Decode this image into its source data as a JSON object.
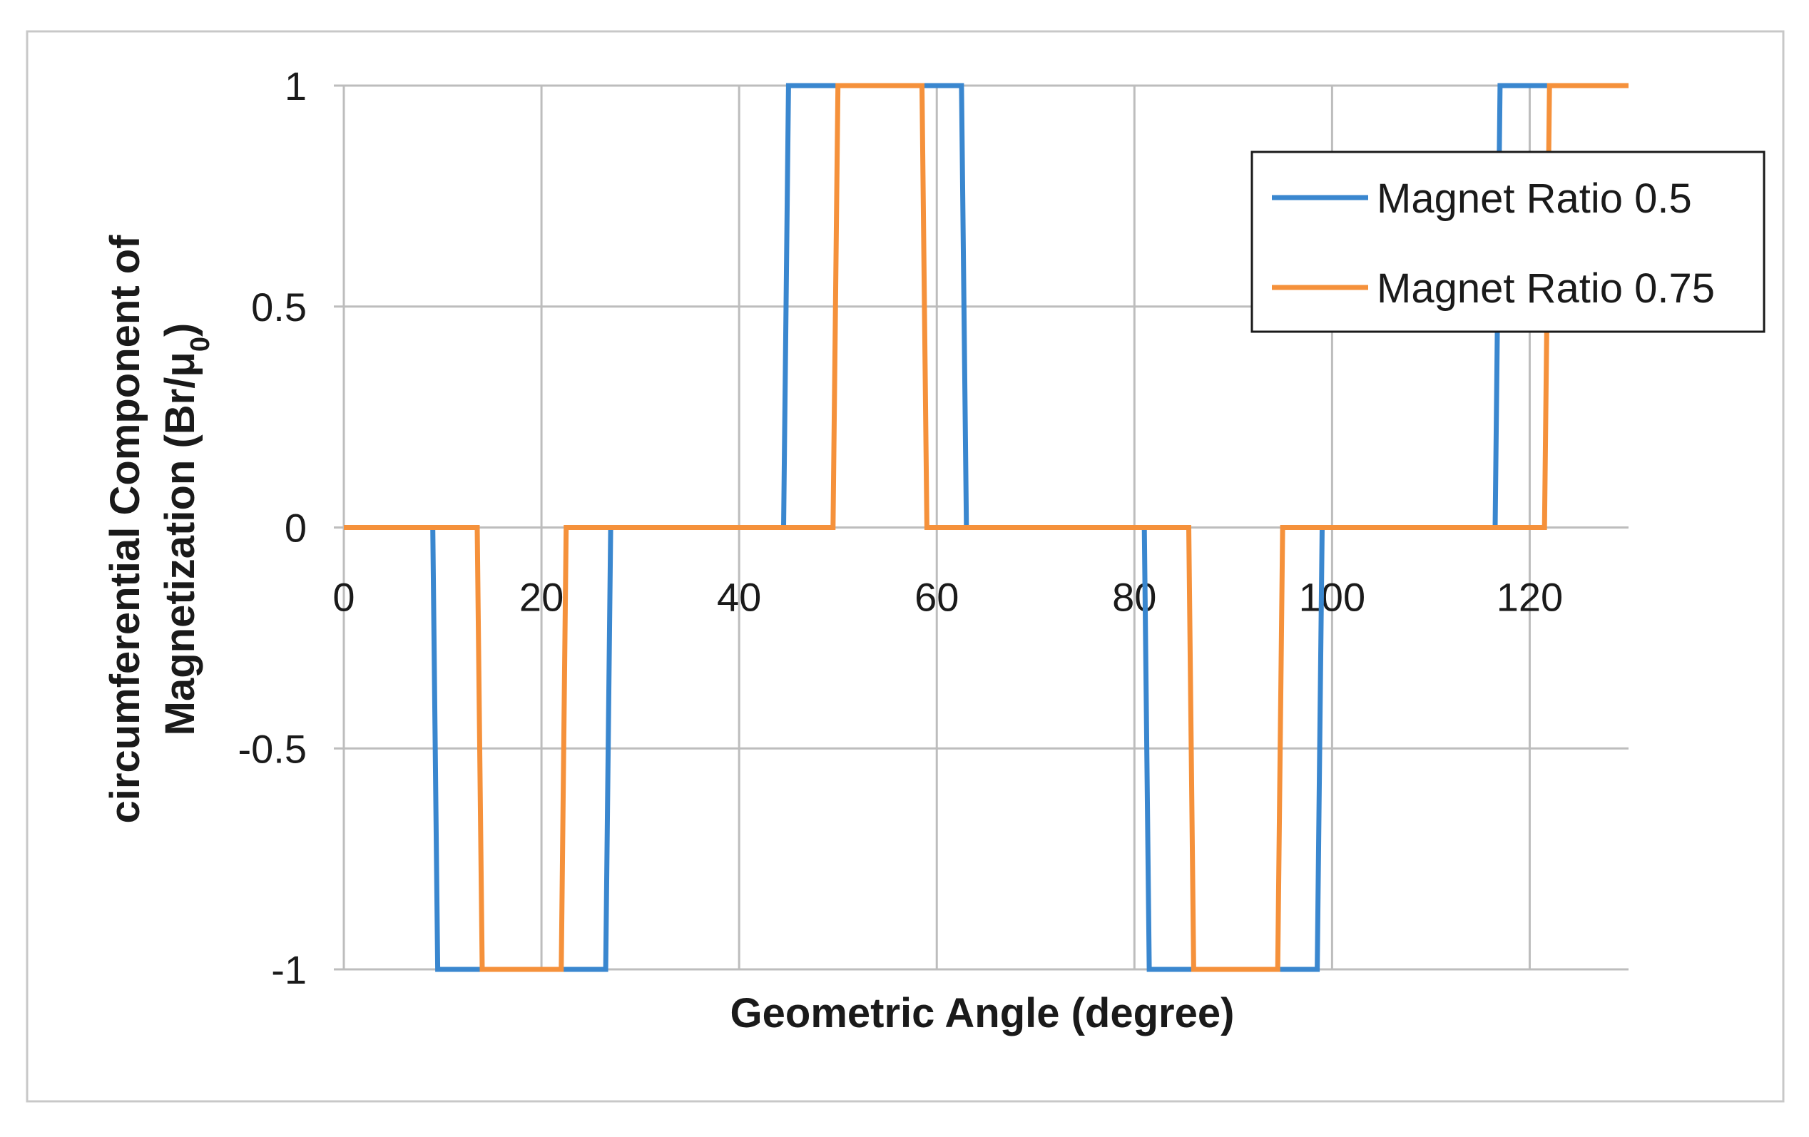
{
  "chart_data": {
    "type": "line",
    "title": "",
    "xlabel": "Geometric Angle (degree)",
    "ylabel_line1": "circumferential Component of",
    "ylabel_line2_main": "Magnetization (Br/μ",
    "ylabel_line2_sub": "0",
    "ylabel_line2_end": ")",
    "xlim": [
      0,
      130
    ],
    "ylim": [
      -1,
      1
    ],
    "x_ticks": [
      0,
      20,
      40,
      60,
      80,
      100,
      120
    ],
    "x_tick_labels": [
      "0",
      "20",
      "40",
      "60",
      "80",
      "100",
      "120"
    ],
    "y_ticks": [
      1,
      0.5,
      0,
      -0.5,
      -1
    ],
    "y_tick_labels": [
      "1",
      "0.5",
      "0",
      "-0.5",
      "-1"
    ],
    "grid": true,
    "legend_position": "top-right",
    "series": [
      {
        "name": "Magnet Ratio 0.5",
        "color": "#3a87cf",
        "x": [
          0,
          9,
          9.5,
          26.5,
          27,
          44.5,
          45,
          62.5,
          63,
          81,
          81.5,
          98.5,
          99,
          116.5,
          117,
          130
        ],
        "y": [
          0,
          0,
          -1,
          -1,
          0,
          0,
          1,
          1,
          0,
          0,
          -1,
          -1,
          0,
          0,
          1,
          1
        ]
      },
      {
        "name": "Magnet Ratio 0.75",
        "color": "#f5913b",
        "x": [
          0,
          13.5,
          14,
          22,
          22.5,
          49.5,
          50,
          58.5,
          59,
          85.5,
          86,
          94.5,
          95,
          121.5,
          122,
          130
        ],
        "y": [
          0,
          0,
          -1,
          -1,
          0,
          0,
          1,
          1,
          0,
          0,
          -1,
          -1,
          0,
          0,
          1,
          1
        ]
      }
    ]
  }
}
